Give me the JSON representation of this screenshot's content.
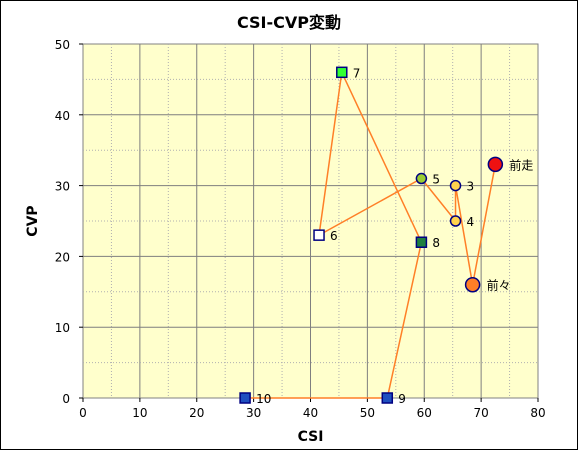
{
  "chart_data": {
    "type": "scatter",
    "title": "CSI-CVP変動",
    "xlabel": "CSI",
    "ylabel": "CVP",
    "xlim": [
      0,
      80
    ],
    "ylim": [
      0,
      50
    ],
    "xticks": [
      0,
      10,
      20,
      30,
      40,
      50,
      60,
      70,
      80
    ],
    "yticks": [
      0,
      10,
      20,
      30,
      40,
      50
    ],
    "xtick_labels": [
      "0",
      "10",
      "20",
      "30",
      "40",
      "50",
      "60",
      "70",
      "80"
    ],
    "ytick_labels": [
      "0",
      "10",
      "20",
      "30",
      "40",
      "50"
    ],
    "grid": true,
    "plot_background": "#ffffcc",
    "line_color": "#ff7f27",
    "points": [
      {
        "label": "10",
        "x": 28.5,
        "y": 0,
        "shape": "square",
        "fill": "#1f4fbf",
        "stroke": "#000080"
      },
      {
        "label": "9",
        "x": 53.5,
        "y": 0,
        "shape": "square",
        "fill": "#1f4fbf",
        "stroke": "#000080"
      },
      {
        "label": "8",
        "x": 59.5,
        "y": 22,
        "shape": "square",
        "fill": "#1f7f3f",
        "stroke": "#000080"
      },
      {
        "label": "7",
        "x": 45.5,
        "y": 46,
        "shape": "square",
        "fill": "#33ff33",
        "stroke": "#000080"
      },
      {
        "label": "6",
        "x": 41.5,
        "y": 23,
        "shape": "square",
        "fill": "#ffffff",
        "stroke": "#000080"
      },
      {
        "label": "5",
        "x": 59.5,
        "y": 31,
        "shape": "circle",
        "fill": "#9acd32",
        "stroke": "#000080"
      },
      {
        "label": "4",
        "x": 65.5,
        "y": 25,
        "shape": "circle",
        "fill": "#ffd24d",
        "stroke": "#000080"
      },
      {
        "label": "3",
        "x": 65.5,
        "y": 30,
        "shape": "circle",
        "fill": "#ffd24d",
        "stroke": "#000080"
      },
      {
        "label": "前々",
        "x": 68.5,
        "y": 16,
        "shape": "circle-large",
        "fill": "#ff7f27",
        "stroke": "#000080"
      },
      {
        "label": "前走",
        "x": 72.5,
        "y": 33,
        "shape": "circle-large",
        "fill": "#ee1111",
        "stroke": "#000080"
      }
    ]
  }
}
